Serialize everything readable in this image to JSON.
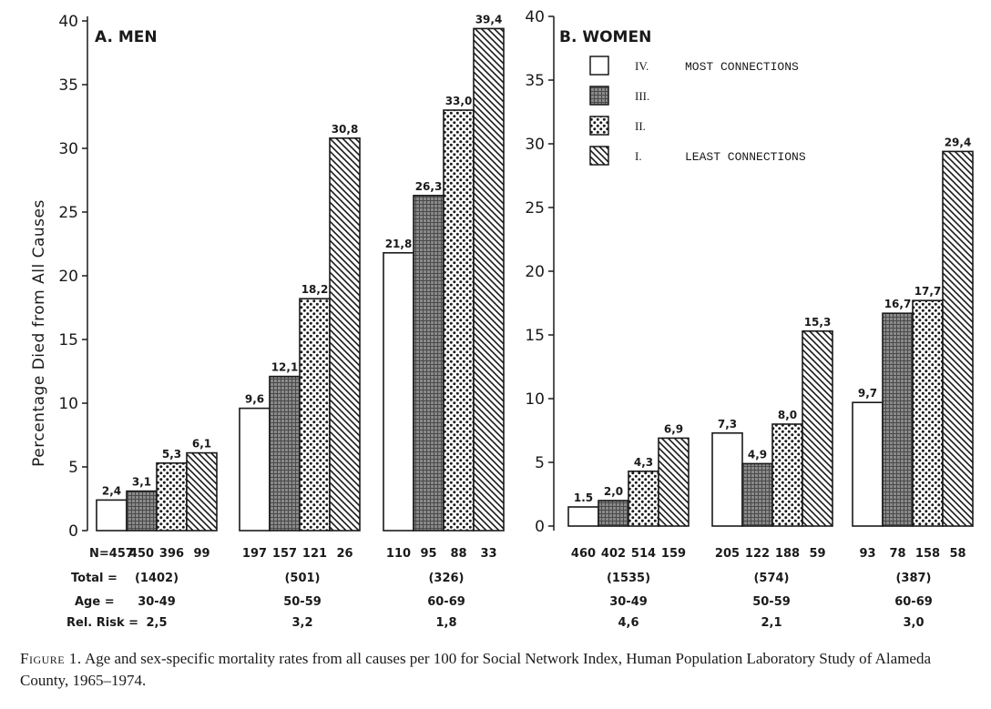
{
  "caption": {
    "label": "Figure 1.",
    "text": "Age and sex-specific mortality rates from all causes per 100 for Social Network Index, Human Population Laboratory Study of Alameda County, 1965–1974."
  },
  "colors": {
    "ink": "#1a1a1a",
    "bar_dark_fill": "#8a8a8a",
    "background": "#ffffff"
  },
  "legend": {
    "items": [
      {
        "numeral": "IV.",
        "text": "MOST CONNECTIONS",
        "pattern": "open"
      },
      {
        "numeral": "III.",
        "text": "",
        "pattern": "dense-grid"
      },
      {
        "numeral": "II.",
        "text": "",
        "pattern": "dots"
      },
      {
        "numeral": "I.",
        "text": "LEAST CONNECTIONS",
        "pattern": "hatch"
      }
    ]
  },
  "chart_data": [
    {
      "type": "bar",
      "title": "A. MEN",
      "ylabel": "Percentage Died from All Causes",
      "xlabel": "",
      "ylim": [
        0,
        40
      ],
      "yticks": [
        0,
        5,
        10,
        15,
        20,
        25,
        30,
        35,
        40
      ],
      "categories": [
        "30-49",
        "50-59",
        "60-69"
      ],
      "series": [
        {
          "name": "IV. Most connections",
          "values": [
            2.4,
            9.6,
            21.8
          ],
          "labels": [
            "2,4",
            "9,6",
            "21,8"
          ],
          "n": [
            "N=457",
            "197",
            "110"
          ]
        },
        {
          "name": "III.",
          "values": [
            3.1,
            12.1,
            26.3
          ],
          "labels": [
            "3,1",
            "12,1",
            "26,3"
          ],
          "n": [
            "450",
            "157",
            "95"
          ]
        },
        {
          "name": "II.",
          "values": [
            5.3,
            18.2,
            33.0
          ],
          "labels": [
            "5,3",
            "18,2",
            "33,0"
          ],
          "n": [
            "396",
            "121",
            "88"
          ]
        },
        {
          "name": "I. Least connections",
          "values": [
            6.1,
            30.8,
            39.4
          ],
          "labels": [
            "6,1",
            "30,8",
            "39,4"
          ],
          "n": [
            "99",
            "26",
            "33"
          ]
        }
      ],
      "row_labels": {
        "total": "Total =",
        "age": "Age =",
        "risk": "Rel. Risk ="
      },
      "totals": [
        "(1402)",
        "(501)",
        "(326)"
      ],
      "ages": [
        "30-49",
        "50-59",
        "60-69"
      ],
      "rel_risk": [
        "2,5",
        "3,2",
        "1,8"
      ]
    },
    {
      "type": "bar",
      "title": "B. WOMEN",
      "ylabel": "",
      "xlabel": "",
      "ylim": [
        0,
        40
      ],
      "yticks": [
        0,
        5,
        10,
        15,
        20,
        25,
        30,
        35,
        40
      ],
      "categories": [
        "30-49",
        "50-59",
        "60-69"
      ],
      "series": [
        {
          "name": "IV. Most connections",
          "values": [
            1.5,
            7.3,
            9.7
          ],
          "labels": [
            "1.5",
            "7,3",
            "9,7"
          ],
          "n": [
            "460",
            "205",
            "93"
          ]
        },
        {
          "name": "III.",
          "values": [
            2.0,
            4.9,
            16.7
          ],
          "labels": [
            "2,0",
            "4,9",
            "16,7"
          ],
          "n": [
            "402",
            "122",
            "78"
          ]
        },
        {
          "name": "II.",
          "values": [
            4.3,
            8.0,
            17.7
          ],
          "labels": [
            "4,3",
            "8,0",
            "17,7"
          ],
          "n": [
            "514",
            "188",
            "158"
          ]
        },
        {
          "name": "I. Least connections",
          "values": [
            6.9,
            15.3,
            29.4
          ],
          "labels": [
            "6,9",
            "15,3",
            "29,4"
          ],
          "n": [
            "159",
            "59",
            "58"
          ]
        }
      ],
      "totals": [
        "(1535)",
        "(574)",
        "(387)"
      ],
      "ages": [
        "30-49",
        "50-59",
        "60-69"
      ],
      "rel_risk": [
        "4,6",
        "2,1",
        "3,0"
      ]
    }
  ]
}
